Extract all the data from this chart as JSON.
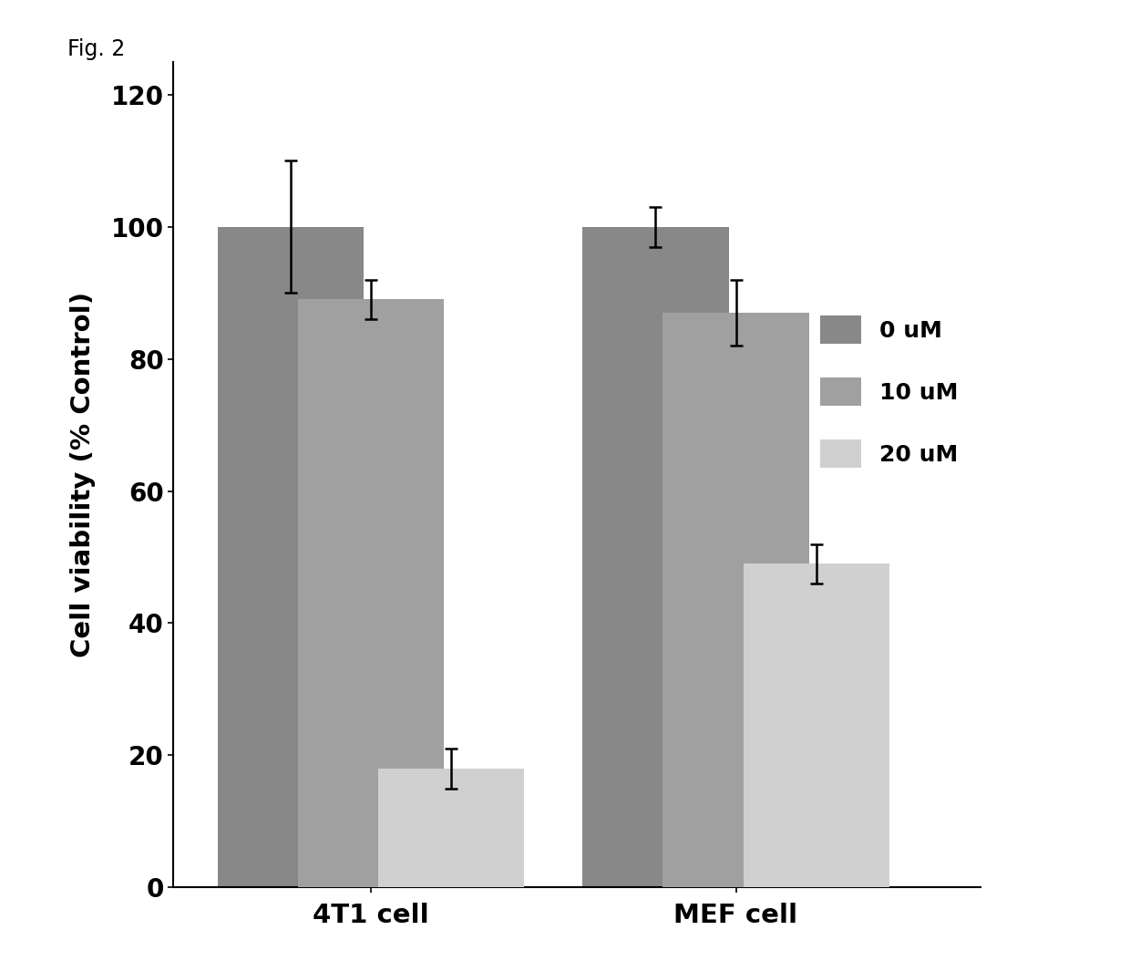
{
  "groups": [
    "4T1 cell",
    "MEF cell"
  ],
  "conditions": [
    "0 uM",
    "10 uM",
    "20 uM"
  ],
  "values": {
    "4T1 cell": [
      100,
      89,
      18
    ],
    "MEF cell": [
      100,
      87,
      49
    ]
  },
  "errors": {
    "4T1 cell": [
      10,
      3,
      3
    ],
    "MEF cell": [
      3,
      5,
      3
    ]
  },
  "bar_colors": [
    "#888888",
    "#a0a0a0",
    "#d0d0d0"
  ],
  "ylabel": "Cell viability (% Control)",
  "ylim": [
    0,
    125
  ],
  "yticks": [
    0,
    20,
    40,
    60,
    80,
    100,
    120
  ],
  "fig_label": "Fig. 2",
  "legend_labels": [
    "0 uM",
    "10 uM",
    "20 uM"
  ],
  "background_color": "#ffffff",
  "bar_width": 0.28,
  "group_centers": [
    0.38,
    1.08
  ]
}
